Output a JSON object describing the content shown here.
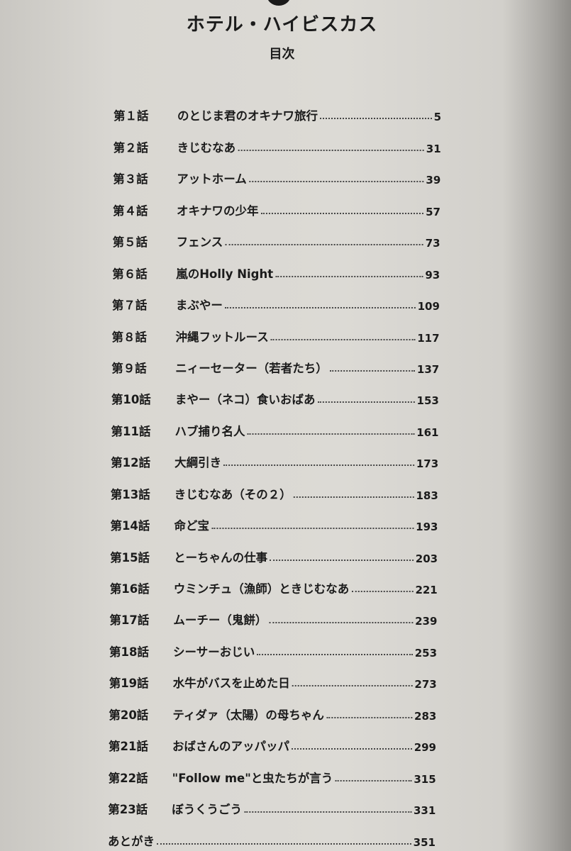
{
  "book_title": "ホテル・ハイビスカス",
  "heading": "目次",
  "entries": [
    {
      "number": "第１話",
      "title": "のとじま君のオキナワ旅行",
      "page": "5"
    },
    {
      "number": "第２話",
      "title": "きじむなあ",
      "page": "31"
    },
    {
      "number": "第３話",
      "title": "アットホーム",
      "page": "39"
    },
    {
      "number": "第４話",
      "title": "オキナワの少年",
      "page": "57"
    },
    {
      "number": "第５話",
      "title": "フェンス",
      "page": "73"
    },
    {
      "number": "第６話",
      "title": "嵐のHolly Night",
      "page": "93"
    },
    {
      "number": "第７話",
      "title": "まぶやー",
      "page": "109"
    },
    {
      "number": "第８話",
      "title": "沖縄フットルース",
      "page": "117"
    },
    {
      "number": "第９話",
      "title": "ニィーセーター（若者たち）",
      "page": "137"
    },
    {
      "number": "第10話",
      "title": "まやー（ネコ）食いおばあ",
      "page": "153"
    },
    {
      "number": "第11話",
      "title": "ハブ捕り名人",
      "page": "161"
    },
    {
      "number": "第12話",
      "title": "大綱引き",
      "page": "173"
    },
    {
      "number": "第13話",
      "title": "きじむなあ（その２）",
      "page": "183"
    },
    {
      "number": "第14話",
      "title": "命ど宝",
      "page": "193"
    },
    {
      "number": "第15話",
      "title": "とーちゃんの仕事",
      "page": "203"
    },
    {
      "number": "第16話",
      "title": "ウミンチュ（漁師）ときじむなあ",
      "page": "221"
    },
    {
      "number": "第17話",
      "title": "ムーチー（鬼餅）",
      "page": "239"
    },
    {
      "number": "第18話",
      "title": "シーサーおじい",
      "page": "253"
    },
    {
      "number": "第19話",
      "title": "水牛がバスを止めた日",
      "page": "273"
    },
    {
      "number": "第20話",
      "title": "ティダァ（太陽）の母ちゃん",
      "page": "283"
    },
    {
      "number": "第21話",
      "title": "おばさんのアッパッパ",
      "page": "299"
    },
    {
      "number": "第22話",
      "title": "\"Follow me\"と虫たちが言う",
      "page": "315"
    },
    {
      "number": "第23話",
      "title": "ぼうくうごう",
      "page": "331"
    },
    {
      "number": "",
      "title": "あとがき",
      "page": "351"
    }
  ]
}
